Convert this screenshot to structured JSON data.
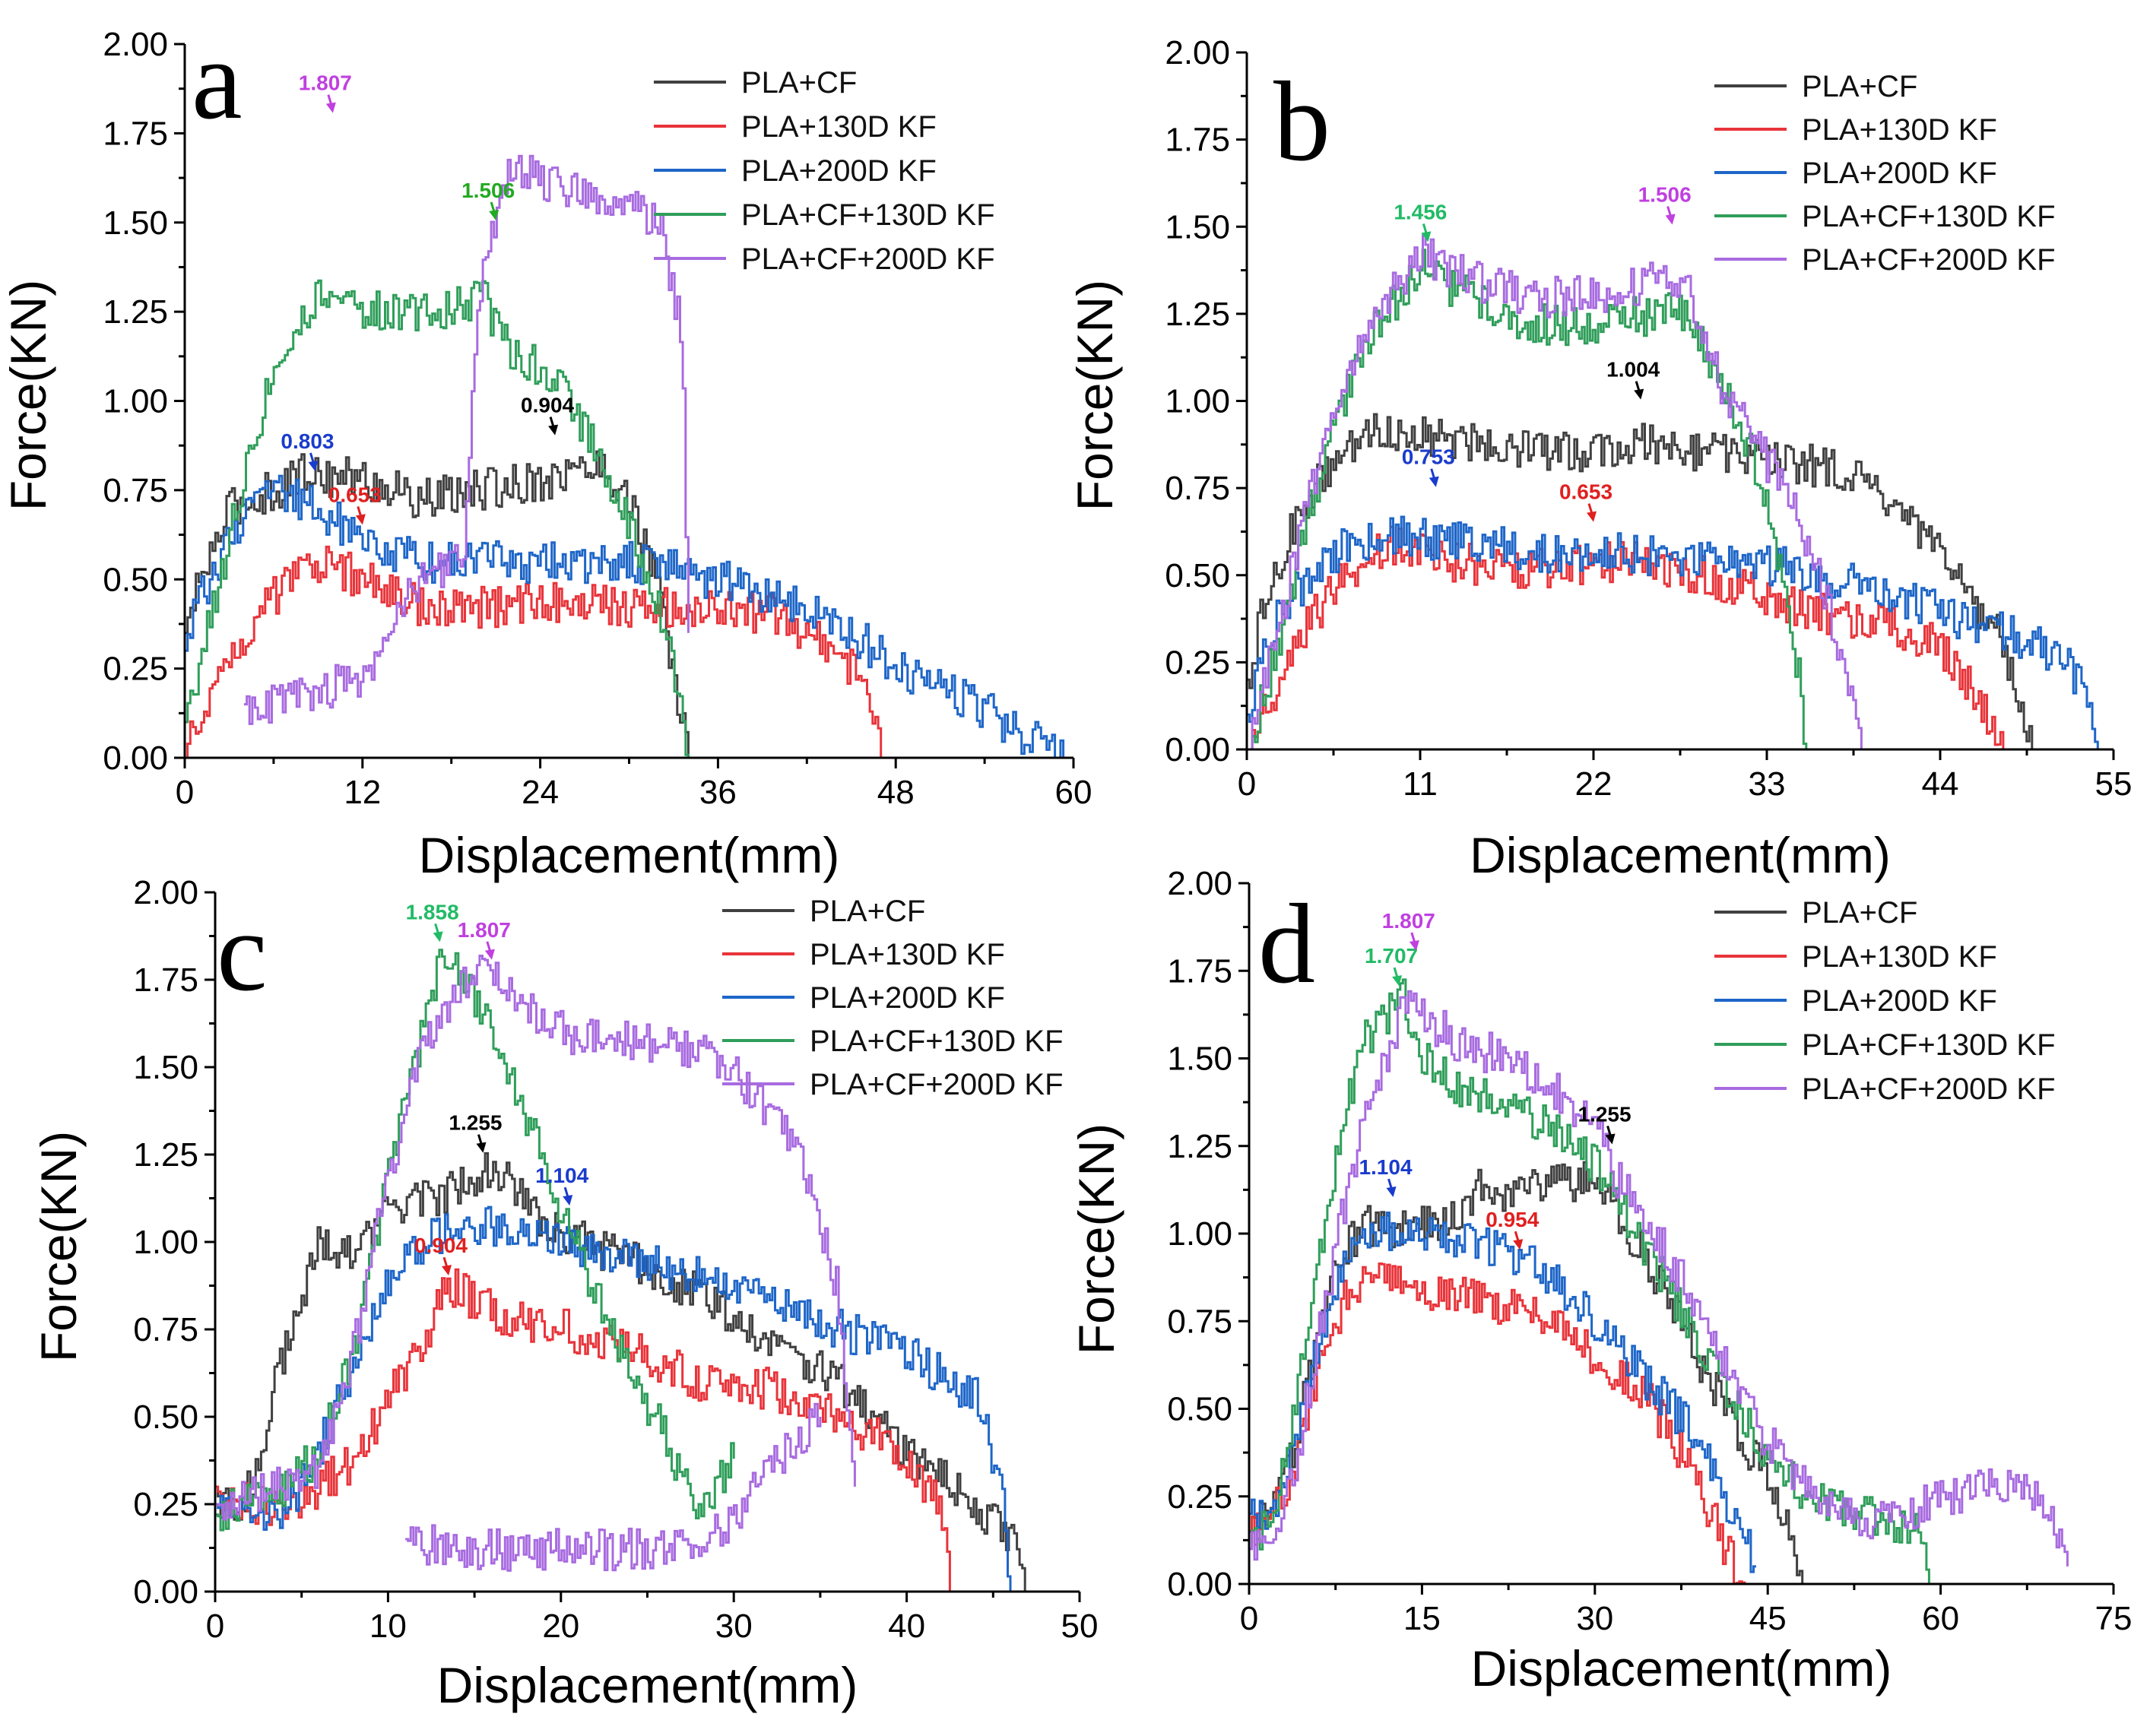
{
  "colors": {
    "PLA+CF": "#404040",
    "PLA+130D KF": "#e8343a",
    "PLA+200D KF": "#1e66c8",
    "PLA+CF+130D KF": "#2f9e5a",
    "PLA+CF+200D KF": "#a86be0"
  },
  "chart_data": [
    {
      "type": "line",
      "panel": "a",
      "xlabel": "Displacement(mm)",
      "ylabel": "Force(KN)",
      "xlim": [
        0,
        60
      ],
      "ylim": [
        0,
        2
      ],
      "xticks": [
        "0",
        "12",
        "24",
        "36",
        "48",
        "60"
      ],
      "yticks": [
        "0.00",
        "0.25",
        "0.50",
        "0.75",
        "1.00",
        "1.25",
        "1.50",
        "1.75",
        "2.00"
      ],
      "legend": [
        "PLA+CF",
        "PLA+130D KF",
        "PLA+200D KF",
        "PLA+CF+130D KF",
        "PLA+CF+200D KF"
      ],
      "series": [
        {
          "name": "PLA+CF",
          "x": [
            0,
            1,
            3,
            6,
            8,
            12,
            16,
            20,
            24,
            28,
            30,
            31,
            32,
            33.5,
            34
          ],
          "y": [
            0.35,
            0.5,
            0.7,
            0.75,
            0.8,
            0.78,
            0.72,
            0.75,
            0.78,
            0.82,
            0.72,
            0.6,
            0.45,
            0.1,
            0.0
          ]
        },
        {
          "name": "PLA+130D KF",
          "x": [
            0,
            1,
            3,
            6,
            9,
            12,
            16,
            20,
            25,
            30,
            35,
            40,
            44,
            46,
            47
          ],
          "y": [
            0.0,
            0.12,
            0.3,
            0.45,
            0.55,
            0.5,
            0.42,
            0.42,
            0.44,
            0.42,
            0.42,
            0.4,
            0.3,
            0.2,
            0.0
          ]
        },
        {
          "name": "PLA+200D KF",
          "x": [
            0,
            1,
            3,
            6,
            9,
            12,
            16,
            20,
            25,
            30,
            36,
            40,
            45,
            48,
            52,
            56,
            59.5
          ],
          "y": [
            0.3,
            0.45,
            0.62,
            0.75,
            0.7,
            0.6,
            0.55,
            0.55,
            0.55,
            0.55,
            0.5,
            0.45,
            0.35,
            0.25,
            0.18,
            0.08,
            0.0
          ]
        },
        {
          "name": "PLA+CF+130D KF",
          "x": [
            0,
            2,
            4,
            6,
            8,
            10,
            12,
            15,
            18,
            20,
            21,
            22,
            25,
            27,
            29,
            31,
            33,
            34
          ],
          "y": [
            0.1,
            0.45,
            0.8,
            1.1,
            1.25,
            1.32,
            1.25,
            1.25,
            1.25,
            1.3,
            1.2,
            1.15,
            1.05,
            0.92,
            0.75,
            0.55,
            0.25,
            0.0
          ]
        },
        {
          "name": "PLA+CF+200D KF",
          "x": [
            4,
            6,
            8,
            10,
            12,
            13,
            14,
            15,
            16,
            17,
            18,
            18.8,
            19.2,
            20,
            22,
            24,
            26,
            28,
            30,
            32,
            33.5,
            34
          ],
          "y": [
            0.15,
            0.15,
            0.18,
            0.2,
            0.2,
            0.3,
            0.4,
            0.45,
            0.5,
            0.52,
            0.55,
            0.6,
            0.9,
            1.35,
            1.65,
            1.62,
            1.6,
            1.58,
            1.55,
            1.5,
            1.2,
            0.35
          ]
        }
      ],
      "annotations": [
        {
          "text": "1.807",
          "color": "#c040e0",
          "x": 10,
          "y": 1.807
        },
        {
          "text": "1.506",
          "color": "#22aa22",
          "x": 21,
          "y": 1.506
        },
        {
          "text": "0.904",
          "color": "#000000",
          "x": 25,
          "y": 0.904
        },
        {
          "text": "0.803",
          "color": "#1a3ccc",
          "x": 8.8,
          "y": 0.803
        },
        {
          "text": "0.653",
          "color": "#e02020",
          "x": 12,
          "y": 0.653
        }
      ]
    },
    {
      "type": "line",
      "panel": "b",
      "xlabel": "Displacement(mm)",
      "ylabel": "Force(KN)",
      "xlim": [
        0,
        55
      ],
      "ylim": [
        0,
        2
      ],
      "xticks": [
        "0",
        "11",
        "22",
        "33",
        "44",
        "55"
      ],
      "yticks": [
        "0.00",
        "0.25",
        "0.50",
        "0.75",
        "1.00",
        "1.25",
        "1.50",
        "1.75",
        "2.00"
      ],
      "legend": [
        "PLA+CF",
        "PLA+130D KF",
        "PLA+200D KF",
        "PLA+CF+130D KF",
        "PLA+CF+200D KF"
      ],
      "series": [
        {
          "name": "PLA+CF",
          "x": [
            0,
            1,
            3,
            5,
            8,
            11,
            15,
            20,
            25,
            30,
            35,
            38,
            42,
            45,
            48,
            50
          ],
          "y": [
            0.2,
            0.4,
            0.65,
            0.8,
            0.92,
            0.9,
            0.88,
            0.85,
            0.88,
            0.85,
            0.82,
            0.8,
            0.65,
            0.5,
            0.3,
            0.0
          ]
        },
        {
          "name": "PLA+130D KF",
          "x": [
            0,
            1,
            3,
            6,
            9,
            12,
            16,
            20,
            25,
            30,
            35,
            40,
            44,
            47,
            48
          ],
          "y": [
            0.0,
            0.1,
            0.3,
            0.5,
            0.58,
            0.55,
            0.52,
            0.52,
            0.55,
            0.48,
            0.4,
            0.36,
            0.3,
            0.1,
            0.0
          ]
        },
        {
          "name": "PLA+200D KF",
          "x": [
            0,
            1,
            3,
            6,
            9,
            12,
            16,
            20,
            25,
            30,
            35,
            40,
            45,
            50,
            53,
            54
          ],
          "y": [
            0.1,
            0.3,
            0.45,
            0.58,
            0.62,
            0.6,
            0.58,
            0.56,
            0.56,
            0.55,
            0.52,
            0.45,
            0.38,
            0.3,
            0.2,
            0.0
          ]
        },
        {
          "name": "PLA+CF+130D KF",
          "x": [
            0,
            2,
            4,
            6,
            8,
            11,
            14,
            18,
            22,
            26,
            28,
            30,
            32,
            34,
            35,
            35.5
          ],
          "y": [
            0.0,
            0.3,
            0.7,
            1.0,
            1.2,
            1.38,
            1.3,
            1.22,
            1.22,
            1.25,
            1.25,
            1.05,
            0.85,
            0.5,
            0.2,
            0.0
          ]
        },
        {
          "name": "PLA+CF+200D KF",
          "x": [
            0,
            2,
            4,
            6,
            8,
            11,
            14,
            18,
            22,
            26,
            28,
            30,
            32,
            34,
            36,
            38,
            39
          ],
          "y": [
            0.0,
            0.35,
            0.75,
            1.05,
            1.25,
            1.42,
            1.35,
            1.3,
            1.3,
            1.35,
            1.3,
            1.05,
            0.9,
            0.75,
            0.55,
            0.2,
            0.0
          ]
        }
      ],
      "annotations": [
        {
          "text": "1.456",
          "color": "#22bb66",
          "x": 11.5,
          "y": 1.456
        },
        {
          "text": "1.506",
          "color": "#c040e0",
          "x": 27,
          "y": 1.506
        },
        {
          "text": "1.004",
          "color": "#000000",
          "x": 25,
          "y": 1.004
        },
        {
          "text": "0.753",
          "color": "#1a3ccc",
          "x": 12,
          "y": 0.753
        },
        {
          "text": "0.653",
          "color": "#e02020",
          "x": 22,
          "y": 0.653
        }
      ]
    },
    {
      "type": "line",
      "panel": "c",
      "xlabel": "Displacement(mm)",
      "ylabel": "Force(KN)",
      "xlim": [
        0,
        50
      ],
      "ylim": [
        0,
        2
      ],
      "xticks": [
        "0",
        "10",
        "20",
        "30",
        "40",
        "50"
      ],
      "yticks": [
        "0.00",
        "0.25",
        "0.50",
        "0.75",
        "1.00",
        "1.25",
        "1.50",
        "1.75",
        "2.00"
      ],
      "legend": [
        "PLA+CF",
        "PLA+130D KF",
        "PLA+200D KF",
        "PLA+CF+130D KF",
        "PLA+CF+200D KF"
      ],
      "series": [
        {
          "name": "PLA+CF",
          "x": [
            0,
            1,
            2,
            4,
            6,
            8,
            10,
            12,
            14,
            16,
            18,
            20,
            24,
            28,
            32,
            36,
            40,
            44,
            46,
            47
          ],
          "y": [
            0.3,
            0.2,
            0.3,
            0.7,
            1.0,
            0.95,
            1.1,
            1.12,
            1.15,
            1.22,
            1.1,
            1.02,
            0.95,
            0.85,
            0.72,
            0.6,
            0.4,
            0.25,
            0.15,
            0.0
          ]
        },
        {
          "name": "PLA+130D KF",
          "x": [
            0,
            2,
            4,
            6,
            8,
            10,
            12,
            13.5,
            16,
            20,
            24,
            28,
            32,
            36,
            38,
            40,
            42,
            42.5
          ],
          "y": [
            0.3,
            0.25,
            0.25,
            0.3,
            0.38,
            0.55,
            0.72,
            0.88,
            0.8,
            0.75,
            0.7,
            0.6,
            0.58,
            0.5,
            0.45,
            0.35,
            0.25,
            0.0
          ]
        },
        {
          "name": "PLA+200D KF",
          "x": [
            0,
            2,
            4,
            6,
            7,
            8,
            10,
            12,
            14,
            16,
            20,
            24,
            28,
            32,
            36,
            40,
            44,
            45.5,
            46
          ],
          "y": [
            0.25,
            0.22,
            0.22,
            0.4,
            0.55,
            0.65,
            0.9,
            1.0,
            1.05,
            1.05,
            1.0,
            0.95,
            0.9,
            0.85,
            0.75,
            0.68,
            0.55,
            0.3,
            0.0
          ]
        },
        {
          "name": "PLA+CF+130D KF",
          "x": [
            0,
            2,
            4,
            6,
            8,
            10,
            12,
            13,
            14,
            16,
            18,
            20,
            22,
            24,
            26,
            27,
            28,
            29,
            30
          ],
          "y": [
            0.22,
            0.25,
            0.3,
            0.4,
            0.7,
            1.2,
            1.6,
            1.82,
            1.78,
            1.6,
            1.35,
            1.1,
            0.85,
            0.62,
            0.45,
            0.3,
            0.25,
            0.3,
            0.38
          ]
        },
        {
          "name": "PLA+CF+200D KF",
          "x": [
            0,
            2,
            4,
            6,
            8,
            10,
            12,
            14,
            15,
            16,
            18,
            20,
            24,
            28,
            30,
            32,
            34,
            35,
            36,
            36.5,
            37
          ],
          "y": [
            0.25,
            0.28,
            0.3,
            0.35,
            0.7,
            1.2,
            1.55,
            1.72,
            1.78,
            1.75,
            1.68,
            1.6,
            1.58,
            1.55,
            1.48,
            1.38,
            1.22,
            1.05,
            0.85,
            0.55,
            0.3
          ]
        },
        {
          "name": "PLA+CF+200D KF (lower)",
          "x": [
            11,
            14,
            18,
            22,
            26,
            28,
            30,
            32,
            34,
            35
          ],
          "y": [
            0.15,
            0.12,
            0.12,
            0.12,
            0.12,
            0.15,
            0.2,
            0.35,
            0.45,
            0.5
          ]
        }
      ],
      "annotations": [
        {
          "text": "1.858",
          "color": "#22bb66",
          "x": 13,
          "y": 1.858
        },
        {
          "text": "1.807",
          "color": "#c040e0",
          "x": 16,
          "y": 1.807
        },
        {
          "text": "1.255",
          "color": "#000000",
          "x": 15.5,
          "y": 1.255
        },
        {
          "text": "1.104",
          "color": "#1a3ccc",
          "x": 20.5,
          "y": 1.104
        },
        {
          "text": "0.904",
          "color": "#e02020",
          "x": 13.5,
          "y": 0.904
        }
      ]
    },
    {
      "type": "line",
      "panel": "d",
      "xlabel": "Displacement(mm)",
      "ylabel": "Force(KN)",
      "xlim": [
        0,
        75
      ],
      "ylim": [
        0,
        2
      ],
      "xticks": [
        "0",
        "15",
        "30",
        "45",
        "60",
        "75"
      ],
      "yticks": [
        "0.00",
        "0.25",
        "0.50",
        "0.75",
        "1.00",
        "1.25",
        "1.50",
        "1.75",
        "2.00"
      ],
      "legend": [
        "PLA+CF",
        "PLA+130D KF",
        "PLA+200D KF",
        "PLA+CF+130D KF",
        "PLA+CF+200D KF"
      ],
      "series": [
        {
          "name": "PLA+CF",
          "x": [
            0,
            2,
            4,
            6,
            8,
            10,
            14,
            18,
            20,
            22,
            26,
            30,
            34,
            38,
            42,
            45,
            47,
            48
          ],
          "y": [
            0.15,
            0.2,
            0.4,
            0.75,
            0.95,
            1.02,
            1.02,
            1.05,
            1.15,
            1.12,
            1.15,
            1.15,
            0.95,
            0.7,
            0.45,
            0.3,
            0.15,
            0.0
          ]
        },
        {
          "name": "PLA+130D KF",
          "x": [
            0,
            2,
            4,
            6,
            8,
            10,
            14,
            18,
            22,
            26,
            30,
            34,
            38,
            40,
            42,
            43
          ],
          "y": [
            0.15,
            0.2,
            0.35,
            0.6,
            0.8,
            0.88,
            0.85,
            0.82,
            0.8,
            0.75,
            0.65,
            0.55,
            0.35,
            0.2,
            0.05,
            0.0
          ]
        },
        {
          "name": "PLA+200D KF",
          "x": [
            0,
            2,
            4,
            6,
            8,
            10,
            14,
            18,
            22,
            26,
            30,
            34,
            38,
            42,
            44
          ],
          "y": [
            0.2,
            0.22,
            0.4,
            0.7,
            0.92,
            1.0,
            1.0,
            0.98,
            0.95,
            0.88,
            0.75,
            0.6,
            0.45,
            0.2,
            0.05
          ]
        },
        {
          "name": "PLA+CF+130D KF",
          "x": [
            0,
            2,
            4,
            6,
            8,
            10,
            12,
            13,
            15,
            18,
            22,
            26,
            30,
            34,
            38,
            42,
            46,
            50,
            54,
            58,
            59
          ],
          "y": [
            0.1,
            0.2,
            0.5,
            0.95,
            1.3,
            1.55,
            1.62,
            1.7,
            1.5,
            1.42,
            1.38,
            1.3,
            1.2,
            0.98,
            0.75,
            0.52,
            0.32,
            0.22,
            0.2,
            0.15,
            0.0
          ]
        },
        {
          "name": "PLA+CF+200D KF",
          "x": [
            0,
            2,
            4,
            6,
            8,
            10,
            12,
            14,
            15,
            18,
            22,
            26,
            30,
            32,
            36,
            40,
            44,
            48,
            52,
            56,
            60,
            64,
            68,
            70,
            71
          ],
          "y": [
            0.1,
            0.15,
            0.35,
            0.7,
            1.05,
            1.35,
            1.5,
            1.72,
            1.62,
            1.55,
            1.5,
            1.42,
            1.3,
            1.15,
            0.95,
            0.72,
            0.45,
            0.28,
            0.2,
            0.18,
            0.25,
            0.28,
            0.25,
            0.15,
            0.05
          ]
        }
      ],
      "annotations": [
        {
          "text": "1.707",
          "color": "#22bb66",
          "x": 13,
          "y": 1.707
        },
        {
          "text": "1.807",
          "color": "#c040e0",
          "x": 14.5,
          "y": 1.807
        },
        {
          "text": "1.104",
          "color": "#1a3ccc",
          "x": 12.5,
          "y": 1.104
        },
        {
          "text": "1.255",
          "color": "#000000",
          "x": 31.5,
          "y": 1.255
        },
        {
          "text": "0.954",
          "color": "#e02020",
          "x": 23.5,
          "y": 0.954
        }
      ]
    }
  ]
}
